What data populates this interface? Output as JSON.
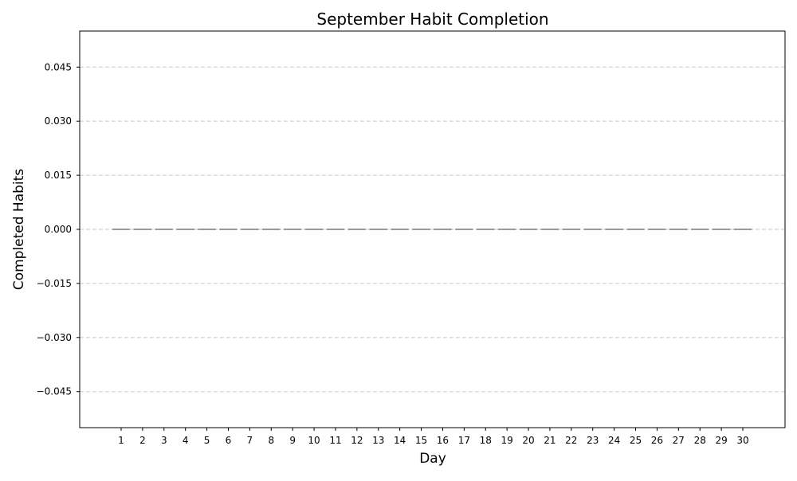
{
  "chart_data": {
    "type": "bar",
    "title": "September Habit Completion",
    "xlabel": "Day",
    "ylabel": "Completed Habits",
    "categories": [
      "1",
      "2",
      "3",
      "4",
      "5",
      "6",
      "7",
      "8",
      "9",
      "10",
      "11",
      "12",
      "13",
      "14",
      "15",
      "16",
      "17",
      "18",
      "19",
      "20",
      "21",
      "22",
      "23",
      "24",
      "25",
      "26",
      "27",
      "28",
      "29",
      "30"
    ],
    "values": [
      0,
      0,
      0,
      0,
      0,
      0,
      0,
      0,
      0,
      0,
      0,
      0,
      0,
      0,
      0,
      0,
      0,
      0,
      0,
      0,
      0,
      0,
      0,
      0,
      0,
      0,
      0,
      0,
      0,
      0
    ],
    "ylim": [
      -0.055,
      0.055
    ],
    "yticks": [
      0.045,
      0.03,
      0.015,
      0.0,
      -0.015,
      -0.03,
      -0.045
    ],
    "ytick_labels": [
      "0.045",
      "0.030",
      "0.015",
      "0.000",
      "−0.015",
      "−0.030",
      "−0.045"
    ],
    "grid": "y-dashed",
    "colors": {
      "bar_edge": "#333333",
      "grid": "#c8c8c8"
    }
  }
}
